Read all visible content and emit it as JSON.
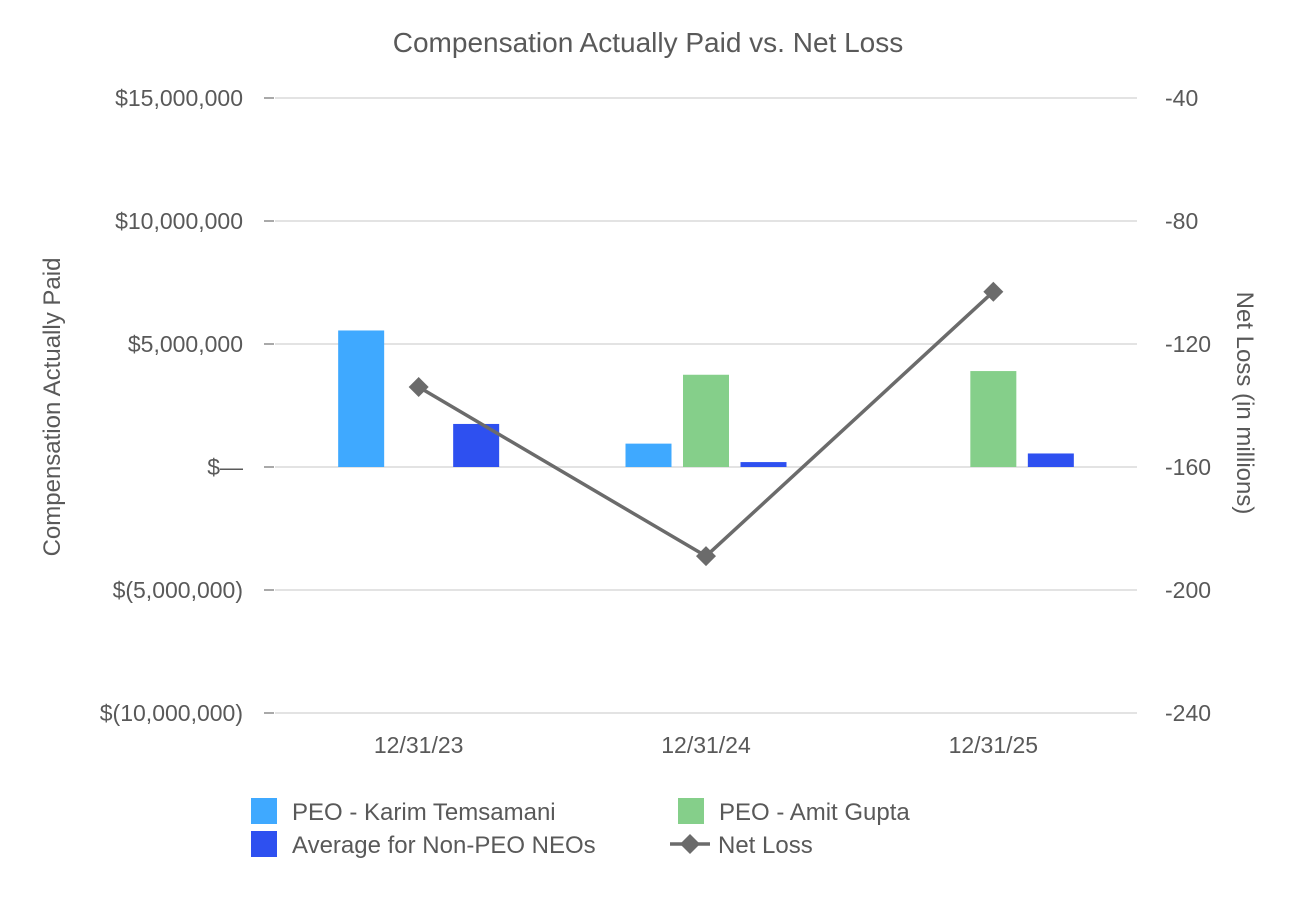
{
  "chart_data": {
    "type": "bar",
    "title": "Compensation Actually Paid vs. Net Loss",
    "categories": [
      "12/31/23",
      "12/31/24",
      "12/31/25"
    ],
    "y_left": {
      "label": "Compensation Actually Paid",
      "min": -10000000,
      "max": 15000000,
      "ticks": [
        15000000,
        10000000,
        5000000,
        0,
        -5000000,
        -10000000
      ],
      "tick_labels": [
        "$15,000,000",
        "$10,000,000",
        "$5,000,000",
        "$—",
        "$(5,000,000)",
        "$(10,000,000)"
      ]
    },
    "y_right": {
      "label": "Net Loss (in millions)",
      "min": -240,
      "max": -40,
      "ticks": [
        -40,
        -80,
        -120,
        -160,
        -200,
        -240
      ],
      "tick_labels": [
        "-40",
        "-80",
        "-120",
        "-160",
        "-200",
        "-240"
      ]
    },
    "series": [
      {
        "name": "PEO - Karim Temsamani",
        "kind": "bar",
        "axis": "left",
        "color": "#3FA9FF",
        "values": [
          5550000,
          950000,
          null
        ]
      },
      {
        "name": "PEO - Amit Gupta",
        "kind": "bar",
        "axis": "left",
        "color": "#85CF8A",
        "values": [
          null,
          3750000,
          3900000
        ]
      },
      {
        "name": "Average for Non-PEO NEOs",
        "kind": "bar",
        "axis": "left",
        "color": "#2E50F0",
        "values": [
          1750000,
          200000,
          550000
        ]
      },
      {
        "name": "Net Loss",
        "kind": "line",
        "axis": "right",
        "color": "#6B6B6B",
        "values": [
          -134,
          -189,
          -103
        ]
      }
    ],
    "legend_position": "bottom",
    "grid": true
  }
}
